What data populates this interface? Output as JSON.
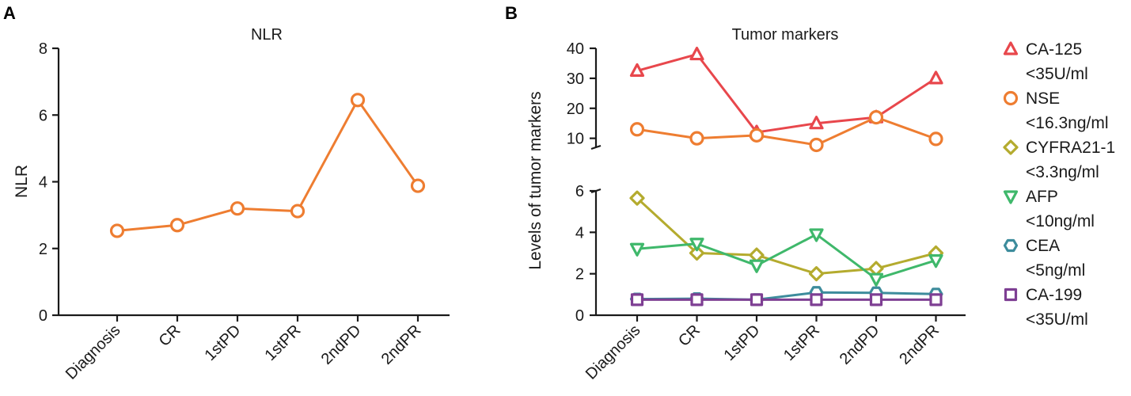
{
  "panels": {
    "a": "A",
    "b": "B"
  },
  "colors": {
    "nlr": "#ee7d31",
    "ca125": "#e8474c",
    "nse": "#ee7d31",
    "cyfra": "#b4ab2e",
    "afp": "#3fb86b",
    "cea": "#3d8c9c",
    "ca199": "#7e3f93"
  },
  "chart_data": [
    {
      "type": "line",
      "title": "NLR",
      "xlabel": "",
      "ylabel": "NLR",
      "categories": [
        "Diagnosis",
        "CR",
        "1stPD",
        "1stPR",
        "2ndPD",
        "2ndPR"
      ],
      "ylim": [
        0,
        8
      ],
      "yticks": [
        0,
        2,
        4,
        6,
        8
      ],
      "series": [
        {
          "name": "NLR",
          "marker": "circle",
          "values": [
            2.53,
            2.7,
            3.2,
            3.12,
            6.45,
            3.88
          ]
        }
      ]
    },
    {
      "type": "line",
      "title": "Tumor markers",
      "xlabel": "",
      "ylabel": "Levels of tumor markers",
      "categories": [
        "Diagnosis",
        "CR",
        "1stPD",
        "1stPR",
        "2ndPD",
        "2ndPR"
      ],
      "broken_axis": {
        "upper": {
          "range": [
            7,
            40
          ],
          "ticks": [
            10,
            20,
            30,
            40
          ]
        },
        "lower": {
          "range": [
            0,
            6
          ],
          "ticks": [
            0,
            2,
            4,
            6
          ]
        }
      },
      "legend_position": "right",
      "series": [
        {
          "name": "CA-125",
          "ref": "<35U/ml",
          "marker": "triangle-up",
          "values": [
            32.5,
            38,
            12,
            15,
            17,
            30
          ]
        },
        {
          "name": "NSE",
          "ref": "<16.3ng/ml",
          "marker": "circle",
          "values": [
            13,
            10,
            11,
            7.8,
            17,
            9.8
          ]
        },
        {
          "name": "CYFRA21-1",
          "ref": "<3.3ng/ml",
          "marker": "diamond",
          "values": [
            5.65,
            3.0,
            2.9,
            2.0,
            2.25,
            3.0
          ]
        },
        {
          "name": "AFP",
          "ref": "<10ng/ml",
          "marker": "triangle-down",
          "values": [
            3.2,
            3.45,
            2.4,
            3.9,
            1.75,
            2.65
          ]
        },
        {
          "name": "CEA",
          "ref": "<5ng/ml",
          "marker": "hexagon",
          "values": [
            0.78,
            0.8,
            0.75,
            1.1,
            1.08,
            1.02
          ]
        },
        {
          "name": "CA-199",
          "ref": "<35U/ml",
          "marker": "square",
          "values": [
            0.75,
            0.75,
            0.75,
            0.75,
            0.75,
            0.75
          ]
        }
      ]
    }
  ]
}
